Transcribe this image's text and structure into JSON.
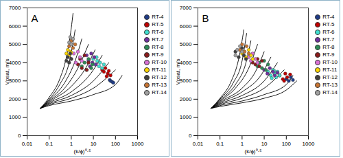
{
  "chart_data": [
    {
      "type": "scatter",
      "title": "A",
      "x_label": "(k/ϕ)⁰·⁵",
      "y_label": "Vpsat, m/s",
      "log": "x",
      "grid": false,
      "legend": "right",
      "marker": "circle",
      "xlim": [
        0.01,
        1000
      ],
      "xticks": [
        0.01,
        0.1,
        1,
        10,
        100,
        1000
      ],
      "ylim": [
        0,
        7000
      ],
      "yticks": [
        0,
        1000,
        2000,
        3000,
        4000,
        5000,
        6000,
        7000
      ],
      "lines": [
        {
          "color": "#000000",
          "x": [
            0.04,
            0.1,
            0.3,
            0.6,
            1,
            1.2
          ],
          "y": [
            1500,
            2100,
            3100,
            4300,
            5900,
            6700
          ]
        },
        {
          "color": "#000000",
          "x": [
            0.04,
            0.1,
            0.3,
            0.8,
            1.5
          ],
          "y": [
            1500,
            2000,
            2800,
            4000,
            5800
          ]
        },
        {
          "color": "#000000",
          "x": [
            0.04,
            0.1,
            0.5,
            1.5,
            3
          ],
          "y": [
            1500,
            1950,
            2900,
            4100,
            5300
          ]
        },
        {
          "color": "#000000",
          "x": [
            0.04,
            0.1,
            0.5,
            2,
            6
          ],
          "y": [
            1500,
            1900,
            2600,
            3700,
            5000
          ]
        },
        {
          "color": "#000000",
          "x": [
            0.04,
            0.1,
            1,
            4,
            12
          ],
          "y": [
            1500,
            1850,
            2700,
            3600,
            4700
          ]
        },
        {
          "color": "#000000",
          "x": [
            0.04,
            0.1,
            1,
            10,
            25
          ],
          "y": [
            1500,
            1800,
            2400,
            3600,
            4400
          ]
        },
        {
          "color": "#000000",
          "x": [
            0.04,
            0.1,
            1,
            10,
            50
          ],
          "y": [
            1500,
            1750,
            2200,
            3000,
            4000
          ]
        },
        {
          "color": "#000000",
          "x": [
            0.04,
            0.1,
            1,
            10,
            100
          ],
          "y": [
            1500,
            1700,
            2050,
            2600,
            3600
          ]
        },
        {
          "color": "#000000",
          "x": [
            0.04,
            0.1,
            1,
            10,
            100,
            200
          ],
          "y": [
            1500,
            1650,
            1900,
            2250,
            2800,
            3300
          ]
        }
      ],
      "series": [
        {
          "name": "RT-4",
          "color": "#1f3c88",
          "x": [
            55,
            60,
            70,
            80
          ],
          "y": [
            3050,
            3000,
            2950,
            2900
          ]
        },
        {
          "name": "RT-5",
          "color": "#c00000",
          "x": [
            25,
            30,
            35,
            45,
            50,
            60,
            40
          ],
          "y": [
            3600,
            3500,
            3700,
            3400,
            3550,
            3300,
            3250
          ]
        },
        {
          "name": "RT-6",
          "color": "#40e0d0",
          "x": [
            10,
            12,
            15,
            18,
            20,
            25,
            30,
            14
          ],
          "y": [
            4200,
            3900,
            4100,
            3800,
            4000,
            3700,
            3900,
            4300
          ]
        },
        {
          "name": "RT-7",
          "color": "#7030a0",
          "x": [
            5,
            6,
            8,
            9,
            11,
            13,
            7
          ],
          "y": [
            4400,
            4100,
            4500,
            4000,
            4300,
            3900,
            3800
          ]
        },
        {
          "name": "RT-8",
          "color": "#2e8b57",
          "x": [
            3,
            4,
            5,
            6,
            8,
            9
          ],
          "y": [
            3800,
            4000,
            3600,
            4200,
            3700,
            3900
          ]
        },
        {
          "name": "RT-9",
          "color": "#8b1a1a",
          "x": [
            2,
            2.5,
            3,
            4,
            5,
            6
          ],
          "y": [
            3900,
            4200,
            3700,
            4400,
            3600,
            4000
          ]
        },
        {
          "name": "RT-10",
          "color": "#da70d6",
          "x": [
            1,
            1.3,
            1.6,
            2,
            2.5,
            3
          ],
          "y": [
            4200,
            4500,
            4000,
            4600,
            4300,
            4100
          ]
        },
        {
          "name": "RT-11",
          "color": "#ffd700",
          "x": [
            0.6,
            0.7,
            0.8,
            0.9,
            1
          ],
          "y": [
            4500,
            4700,
            4400,
            4600,
            4550
          ]
        },
        {
          "name": "RT-12",
          "color": "#404040",
          "x": [
            0.6,
            0.7,
            0.8,
            0.9,
            1
          ],
          "y": [
            4100,
            4300,
            4000,
            4500,
            4200
          ]
        },
        {
          "name": "RT-13",
          "color": "#c87533",
          "x": [
            0.8,
            1,
            1.2,
            1.5
          ],
          "y": [
            4900,
            5200,
            4800,
            5000
          ]
        },
        {
          "name": "RT-14",
          "color": "#a0a0a0",
          "x": [
            0.8,
            0.9,
            1,
            1.2
          ],
          "y": [
            5100,
            5400,
            5000,
            5300
          ]
        }
      ]
    },
    {
      "type": "scatter",
      "title": "B",
      "x_label": "(k/ϕ)⁰·⁵",
      "y_label": "Vpsat, m/s",
      "log": "x",
      "grid": false,
      "legend": "right",
      "marker": "circle",
      "xlim": [
        0.01,
        1000
      ],
      "xticks": [
        0.01,
        0.1,
        1,
        10,
        100,
        1000
      ],
      "ylim": [
        0,
        7000
      ],
      "yticks": [
        0,
        1000,
        2000,
        3000,
        4000,
        5000,
        6000,
        7000
      ],
      "lines": [
        {
          "color": "#000000",
          "x": [
            0.04,
            0.1,
            0.3,
            0.7,
            1.2
          ],
          "y": [
            1500,
            2050,
            2900,
            4200,
            5800
          ]
        },
        {
          "color": "#000000",
          "x": [
            0.04,
            0.1,
            0.4,
            1,
            1.6
          ],
          "y": [
            1500,
            2000,
            2900,
            4100,
            5600
          ]
        },
        {
          "color": "#000000",
          "x": [
            0.04,
            0.1,
            0.5,
            1.5,
            2.5
          ],
          "y": [
            1500,
            1950,
            2800,
            4000,
            5200
          ]
        },
        {
          "color": "#000000",
          "x": [
            0.04,
            0.1,
            0.5,
            2,
            5
          ],
          "y": [
            1500,
            1900,
            2600,
            3700,
            5000
          ]
        },
        {
          "color": "#000000",
          "x": [
            0.04,
            0.1,
            1,
            4,
            10
          ],
          "y": [
            1500,
            1850,
            2600,
            3500,
            4600
          ]
        },
        {
          "color": "#000000",
          "x": [
            0.04,
            0.1,
            1,
            8,
            20
          ],
          "y": [
            1500,
            1800,
            2400,
            3400,
            4300
          ]
        },
        {
          "color": "#000000",
          "x": [
            0.04,
            0.1,
            1,
            10,
            40
          ],
          "y": [
            1500,
            1750,
            2200,
            3000,
            4000
          ]
        },
        {
          "color": "#000000",
          "x": [
            0.04,
            0.1,
            1,
            10,
            80
          ],
          "y": [
            1500,
            1700,
            2050,
            2600,
            3600
          ]
        },
        {
          "color": "#000000",
          "x": [
            0.04,
            0.1,
            1,
            10,
            100,
            200
          ],
          "y": [
            1500,
            1650,
            1900,
            2250,
            2800,
            3300
          ]
        },
        {
          "color": "#000000",
          "x": [
            0.04,
            0.1,
            1,
            10,
            100,
            300
          ],
          "y": [
            1500,
            1600,
            1800,
            2050,
            2500,
            3000
          ]
        }
      ],
      "series": [
        {
          "name": "RT-4",
          "color": "#1f3c88",
          "x": [
            100,
            130,
            160,
            200
          ],
          "y": [
            3100,
            3000,
            3200,
            3050
          ]
        },
        {
          "name": "RT-5",
          "color": "#c00000",
          "x": [
            50,
            70,
            90,
            110,
            150,
            80
          ],
          "y": [
            3300,
            3100,
            3400,
            3200,
            3350,
            3000
          ]
        },
        {
          "name": "RT-6",
          "color": "#40e0d0",
          "x": [
            15,
            20,
            25,
            30,
            35,
            40,
            50,
            22,
            28
          ],
          "y": [
            3500,
            3300,
            3600,
            3400,
            3200,
            3500,
            3300,
            3150,
            3550
          ]
        },
        {
          "name": "RT-7",
          "color": "#7030a0",
          "x": [
            10,
            14,
            18,
            25,
            30,
            40
          ],
          "y": [
            3600,
            3400,
            3700,
            3500,
            3300,
            3450
          ]
        },
        {
          "name": "RT-8",
          "color": "#2e8b57",
          "x": [
            5,
            6,
            8,
            10,
            12,
            15
          ],
          "y": [
            3800,
            4000,
            3700,
            4100,
            3600,
            3900
          ]
        },
        {
          "name": "RT-9",
          "color": "#8b1a1a",
          "x": [
            3,
            4,
            5,
            6,
            8
          ],
          "y": [
            4000,
            3900,
            4200,
            3800,
            4100
          ]
        },
        {
          "name": "RT-10",
          "color": "#da70d6",
          "x": [
            2,
            2.5,
            3,
            4,
            5
          ],
          "y": [
            4300,
            4100,
            4500,
            4200,
            4000
          ]
        },
        {
          "name": "RT-11",
          "color": "#ffd700",
          "x": [
            1,
            1.5,
            2,
            2.5,
            3
          ],
          "y": [
            4500,
            4300,
            4700,
            4400,
            4200
          ]
        },
        {
          "name": "RT-12",
          "color": "#404040",
          "x": [
            0.5,
            0.7,
            1,
            1.2,
            1.5
          ],
          "y": [
            4600,
            4300,
            4800,
            4400,
            4200
          ]
        },
        {
          "name": "RT-13",
          "color": "#c87533",
          "x": [
            0.8,
            1,
            1.3,
            1.6,
            2
          ],
          "y": [
            4700,
            5000,
            4600,
            4900,
            4500
          ]
        },
        {
          "name": "RT-14",
          "color": "#a0a0a0",
          "x": [
            0.5,
            0.6,
            0.8,
            1
          ],
          "y": [
            4400,
            4700,
            4900,
            4600
          ]
        }
      ]
    }
  ]
}
